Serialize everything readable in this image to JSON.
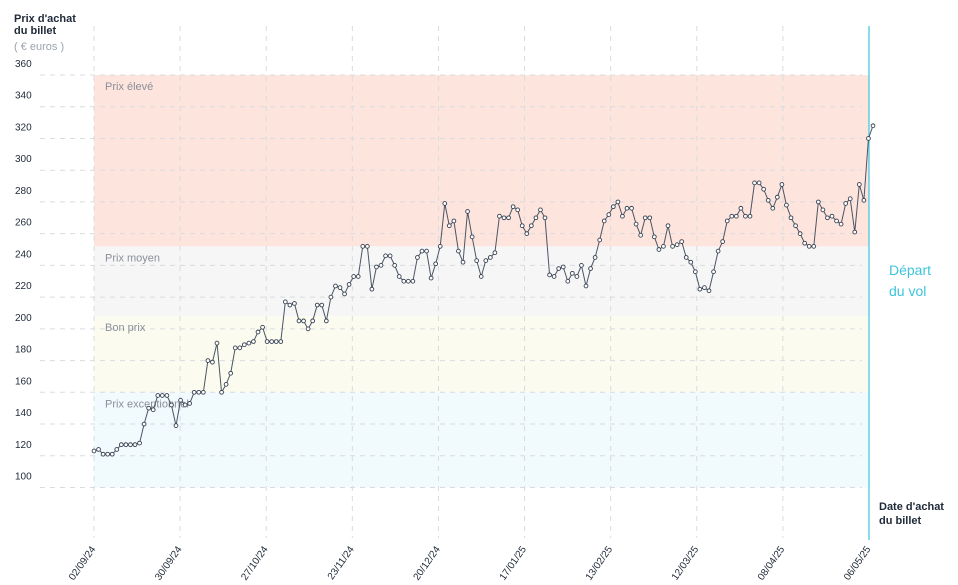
{
  "chart_data": {
    "type": "line",
    "ylabel": [
      "Prix d'achat",
      "du billet"
    ],
    "yunit": "( € euros )",
    "xlabel": [
      "Date d'achat",
      "du billet"
    ],
    "departure_label": [
      "Départ",
      "du vol"
    ],
    "ylim": [
      90,
      360
    ],
    "yticks": [
      100,
      120,
      140,
      160,
      180,
      200,
      220,
      240,
      260,
      280,
      300,
      320,
      340,
      360
    ],
    "xticks": [
      "02/09/24",
      "30/09/24",
      "27/10/24",
      "23/11/24",
      "20/12/24",
      "17/01/25",
      "13/02/25",
      "12/03/25",
      "08/04/25",
      "06/05/25"
    ],
    "grid": true,
    "zones": [
      {
        "label": "Prix élevé",
        "from": 252,
        "to": 360,
        "color": "#fde4dd"
      },
      {
        "label": "Prix moyen",
        "from": 208,
        "to": 252,
        "color": "#f6f6f7"
      },
      {
        "label": "Bon prix",
        "from": 160,
        "to": 208,
        "color": "#fbfcef"
      },
      {
        "label": "Prix exceptionnel",
        "from": 100,
        "to": 160,
        "color": "#f1fafd"
      }
    ],
    "colors": {
      "line": "#4b5563",
      "marker_fill": "#ffffff",
      "departure": "#3bc4dc",
      "grid": "#d9dbe0"
    },
    "series": [
      {
        "values": [
          123,
          124,
          121,
          121,
          121,
          124,
          127,
          127,
          127,
          127,
          128,
          140,
          150,
          149,
          158,
          158,
          158,
          152,
          139,
          155,
          152,
          153,
          160,
          160,
          160,
          180,
          179,
          191,
          160,
          165,
          172,
          188,
          188,
          190,
          191,
          192,
          198,
          201,
          192,
          192,
          192,
          192,
          217,
          215,
          216,
          205,
          205,
          200,
          205,
          215,
          215,
          205,
          220,
          227,
          226,
          222,
          228,
          233,
          233,
          252,
          252,
          225,
          239,
          240,
          246,
          246,
          240,
          233,
          230,
          230,
          230,
          245,
          249,
          249,
          232,
          241,
          252,
          279,
          265,
          268,
          249,
          242,
          274,
          258,
          243,
          233,
          243,
          245,
          248,
          271,
          270,
          270,
          277,
          275,
          265,
          260,
          265,
          270,
          275,
          270,
          234,
          233,
          238,
          239,
          230,
          235,
          233,
          240,
          227,
          238,
          245,
          256,
          268,
          272,
          277,
          280,
          271,
          276,
          276,
          266,
          259,
          270,
          270,
          258,
          250,
          252,
          265,
          252,
          253,
          255,
          245,
          242,
          236,
          225,
          226,
          224,
          236,
          249,
          255,
          268,
          271,
          271,
          276,
          271,
          271,
          292,
          292,
          288,
          281,
          276,
          283,
          291,
          278,
          270,
          265,
          260,
          254,
          252,
          252,
          280,
          275,
          270,
          271,
          268,
          266,
          279,
          282,
          261,
          291,
          281,
          320,
          328
        ]
      }
    ]
  }
}
